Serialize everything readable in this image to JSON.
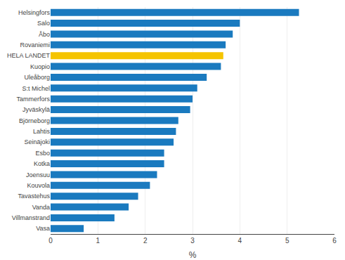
{
  "chart_data": {
    "type": "bar",
    "orientation": "horizontal",
    "categories": [
      "Vasa",
      "Villmanstrand",
      "Vanda",
      "Tavastehus",
      "Kouvola",
      "Joensuu",
      "Kotka",
      "Esbo",
      "Seinäjoki",
      "Lahtis",
      "Björneborg",
      "Jyväskylä",
      "Tammerfors",
      "S:t Michel",
      "Uleåborg",
      "Kuopio",
      "HELA LANDET",
      "Rovaniemi",
      "Åbo",
      "Salo",
      "Helsingfors"
    ],
    "values": [
      0.7,
      1.35,
      1.65,
      1.85,
      2.1,
      2.25,
      2.4,
      2.4,
      2.6,
      2.65,
      2.7,
      2.95,
      3.0,
      3.1,
      3.3,
      3.6,
      3.65,
      3.7,
      3.85,
      4.0,
      5.25
    ],
    "colors": [
      "#1a7abf",
      "#1a7abf",
      "#1a7abf",
      "#1a7abf",
      "#1a7abf",
      "#1a7abf",
      "#1a7abf",
      "#1a7abf",
      "#1a7abf",
      "#1a7abf",
      "#1a7abf",
      "#1a7abf",
      "#1a7abf",
      "#1a7abf",
      "#1a7abf",
      "#1a7abf",
      "#f5c400",
      "#1a7abf",
      "#1a7abf",
      "#1a7abf",
      "#1a7abf"
    ],
    "xlabel": "%",
    "xlim": [
      0,
      6
    ],
    "xticks": [
      0,
      1,
      2,
      3,
      4,
      5,
      6
    ],
    "grid": true
  }
}
